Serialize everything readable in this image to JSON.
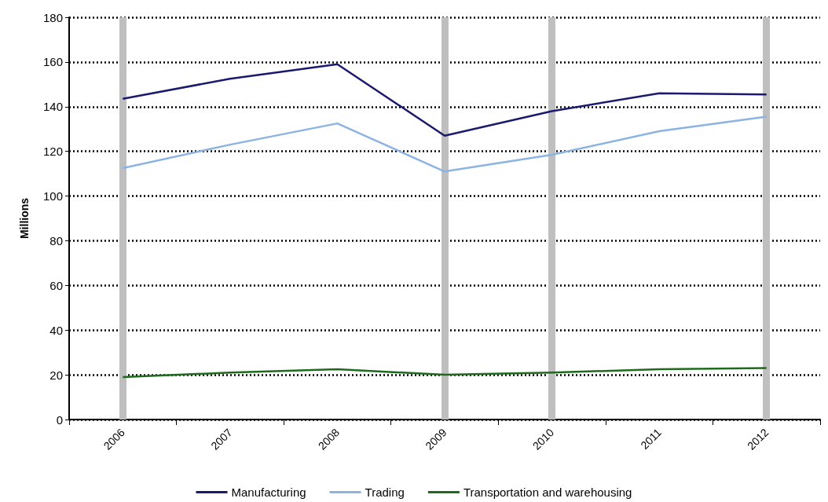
{
  "chart_data": {
    "type": "line",
    "ylabel": "Millions",
    "categories": [
      "2006",
      "2007",
      "2008",
      "2009",
      "2010",
      "2011",
      "2012"
    ],
    "series": [
      {
        "name": "Manufacturing",
        "color": "#1a1a6e",
        "values": [
          143.5,
          152.5,
          159,
          127,
          138,
          146,
          145.5
        ]
      },
      {
        "name": "Trading",
        "color": "#8db3e2",
        "values": [
          112.5,
          123,
          132.5,
          111,
          118.5,
          129,
          135.5
        ]
      },
      {
        "name": "Transportation and warehousing",
        "color": "#1e6b1e",
        "values": [
          19,
          21,
          22.5,
          20,
          21,
          22.5,
          23
        ]
      }
    ],
    "ylim": [
      0,
      180
    ],
    "yticks": [
      0,
      20,
      40,
      60,
      80,
      100,
      120,
      140,
      160,
      180
    ],
    "ref_lines": [
      {
        "axis": "x",
        "value": "2006",
        "color": "#bfbfbf"
      },
      {
        "axis": "x",
        "value": "2009",
        "color": "#bfbfbf"
      },
      {
        "axis": "x",
        "value": "2010",
        "color": "#bfbfbf"
      },
      {
        "axis": "x",
        "value": "2012",
        "color": "#bfbfbf"
      }
    ],
    "grid": "y",
    "legend": "bottom",
    "marker": "none",
    "line_style": "solid"
  }
}
